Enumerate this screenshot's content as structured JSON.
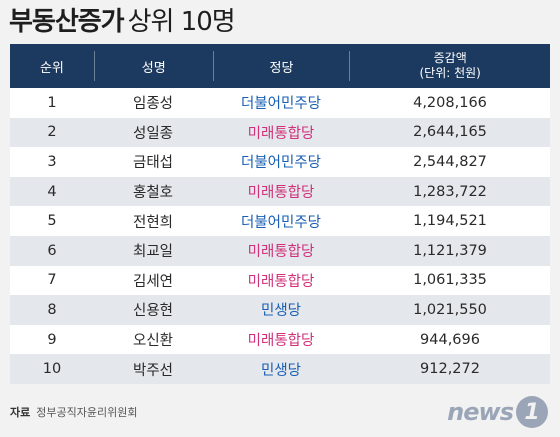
{
  "title": {
    "bold": "부동산증가",
    "light": "상위 10명"
  },
  "table": {
    "headers": {
      "rank": "순위",
      "name": "성명",
      "party": "정당",
      "amount_line1": "증감액",
      "amount_line2": "(단위: 천원)"
    },
    "rows": [
      {
        "rank": "1",
        "name": "임종성",
        "party": "더불어민주당",
        "amount": "4,208,166",
        "party_color": "#1a5fb4"
      },
      {
        "rank": "2",
        "name": "성일종",
        "party": "미래통합당",
        "amount": "2,644,165",
        "party_color": "#d0317a"
      },
      {
        "rank": "3",
        "name": "금태섭",
        "party": "더불어민주당",
        "amount": "2,544,827",
        "party_color": "#1a5fb4"
      },
      {
        "rank": "4",
        "name": "홍철호",
        "party": "미래통합당",
        "amount": "1,283,722",
        "party_color": "#d0317a"
      },
      {
        "rank": "5",
        "name": "전현희",
        "party": "더불어민주당",
        "amount": "1,194,521",
        "party_color": "#1a5fb4"
      },
      {
        "rank": "6",
        "name": "최교일",
        "party": "미래통합당",
        "amount": "1,121,379",
        "party_color": "#d0317a"
      },
      {
        "rank": "7",
        "name": "김세연",
        "party": "미래통합당",
        "amount": "1,061,335",
        "party_color": "#d0317a"
      },
      {
        "rank": "8",
        "name": "신용현",
        "party": "민생당",
        "amount": "1,021,550",
        "party_color": "#1a5fb4"
      },
      {
        "rank": "9",
        "name": "오신환",
        "party": "미래통합당",
        "amount": "944,696",
        "party_color": "#d0317a"
      },
      {
        "rank": "10",
        "name": "박주선",
        "party": "민생당",
        "amount": "912,272",
        "party_color": "#1a5fb4"
      }
    ]
  },
  "footer": {
    "source_label": "자료",
    "source_value": "정부공직자윤리위원회"
  },
  "logo": {
    "word": "news",
    "badge": "1"
  },
  "colors": {
    "header_bg": "#1c3a5f",
    "row_odd": "#ffffff",
    "row_even": "#e4e7ec",
    "democratic": "#1a5fb4",
    "united_future": "#d0317a"
  }
}
